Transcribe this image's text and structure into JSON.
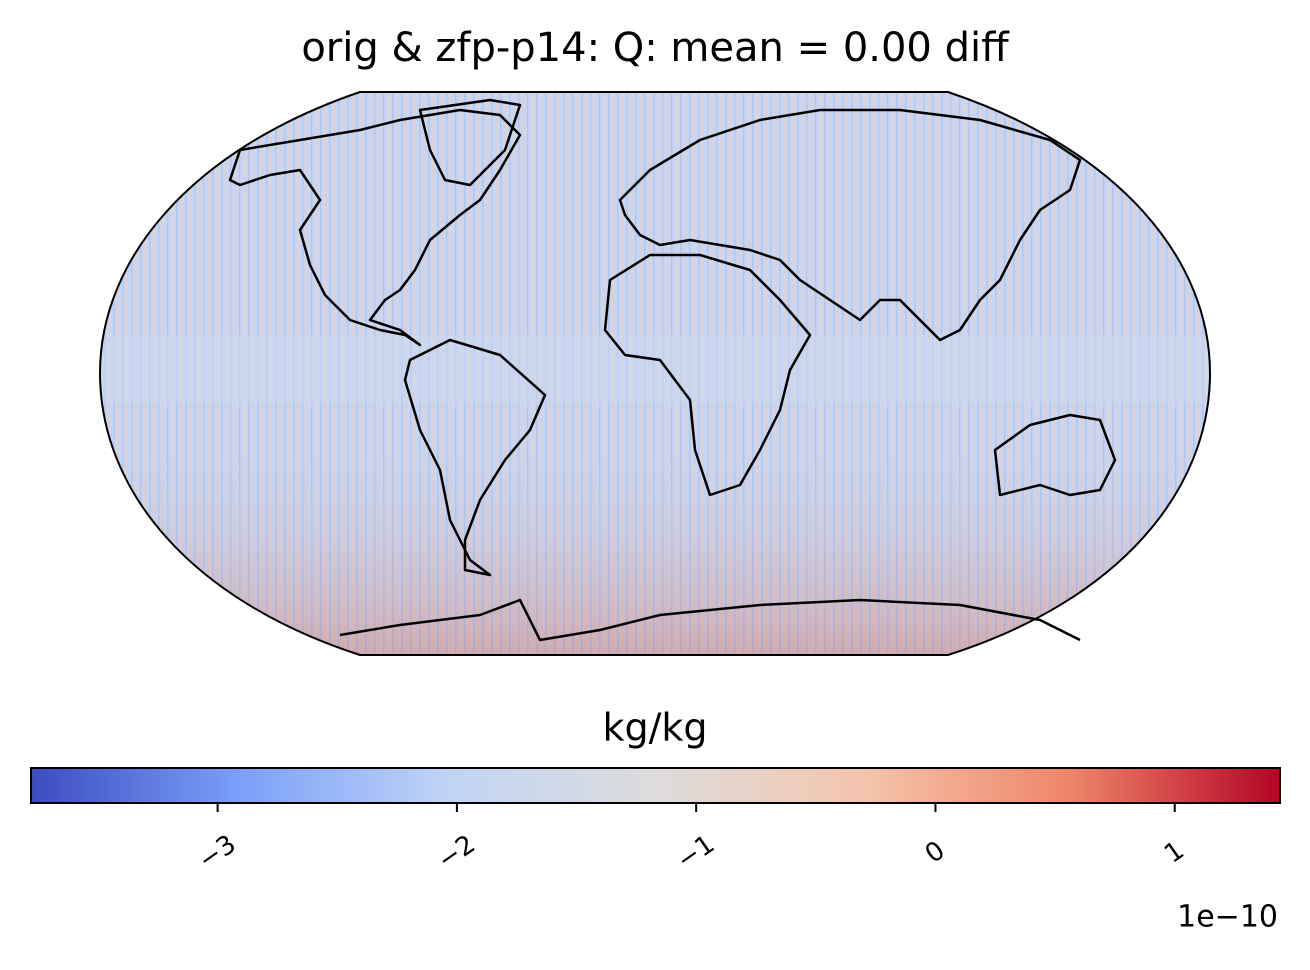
{
  "chart_data": {
    "type": "map",
    "title": "orig & zfp-p14: Q: mean = 0.00 diff",
    "colorbar_label": "kg/kg",
    "colorbar_offset": "1e−10",
    "clim": [
      -3.78,
      1.44
    ],
    "cticks": [
      {
        "value": -3,
        "label": "−3"
      },
      {
        "value": -2,
        "label": "−2"
      },
      {
        "value": -1,
        "label": "−1"
      },
      {
        "value": 0,
        "label": "0"
      },
      {
        "value": 1,
        "label": "1"
      }
    ],
    "colors": [
      "#3b4cc0",
      "#7b9ff9",
      "#c0d4f5",
      "#dddcdc",
      "#f5c4ac",
      "#ee8468",
      "#b40426"
    ]
  }
}
